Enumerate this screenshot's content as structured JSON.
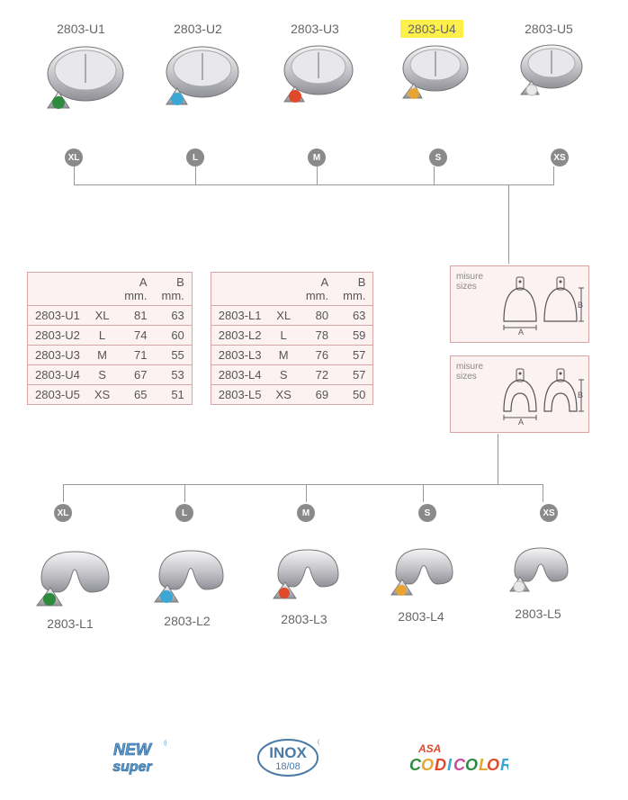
{
  "upper_products": [
    {
      "code": "2803-U1",
      "size": "XL",
      "dot_color": "#2e8b3d",
      "highlighted": false
    },
    {
      "code": "2803-U2",
      "size": "L",
      "dot_color": "#3ba7d4",
      "highlighted": false
    },
    {
      "code": "2803-U3",
      "size": "M",
      "dot_color": "#e04a2a",
      "highlighted": false
    },
    {
      "code": "2803-U4",
      "size": "S",
      "dot_color": "#e6a530",
      "highlighted": true
    },
    {
      "code": "2803-U5",
      "size": "XS",
      "dot_color": "#e8e8e8",
      "highlighted": false
    }
  ],
  "lower_products": [
    {
      "code": "2803-L1",
      "size": "XL",
      "dot_color": "#2e8b3d"
    },
    {
      "code": "2803-L2",
      "size": "L",
      "dot_color": "#3ba7d4"
    },
    {
      "code": "2803-L3",
      "size": "M",
      "dot_color": "#e04a2a"
    },
    {
      "code": "2803-L4",
      "size": "S",
      "dot_color": "#e6a530"
    },
    {
      "code": "2803-L5",
      "size": "XS",
      "dot_color": "#e8e8e8"
    }
  ],
  "table_headers": {
    "col_a": "A",
    "col_b": "B",
    "unit": "mm."
  },
  "table_upper": [
    {
      "code": "2803-U1",
      "size": "XL",
      "a": 81,
      "b": 63
    },
    {
      "code": "2803-U2",
      "size": "L",
      "a": 74,
      "b": 60
    },
    {
      "code": "2803-U3",
      "size": "M",
      "a": 71,
      "b": 55
    },
    {
      "code": "2803-U4",
      "size": "S",
      "a": 67,
      "b": 53
    },
    {
      "code": "2803-U5",
      "size": "XS",
      "a": 65,
      "b": 51
    }
  ],
  "table_lower": [
    {
      "code": "2803-L1",
      "size": "XL",
      "a": 80,
      "b": 63
    },
    {
      "code": "2803-L2",
      "size": "L",
      "a": 78,
      "b": 59
    },
    {
      "code": "2803-L3",
      "size": "M",
      "a": 76,
      "b": 57
    },
    {
      "code": "2803-L4",
      "size": "S",
      "a": 72,
      "b": 57
    },
    {
      "code": "2803-L5",
      "size": "XS",
      "a": 69,
      "b": 50
    }
  ],
  "diagram_label_line1": "misure",
  "diagram_label_line2": "sizes",
  "diagram_dim_a": "A",
  "diagram_dim_b": "B",
  "logos": {
    "new_super_top": "NEW",
    "new_super_bottom": "super",
    "inox_top": "INOX",
    "inox_bottom": "18/08",
    "codicolor_top": "ASA",
    "codicolor_bottom_1": "CO",
    "codicolor_bottom_2": "D",
    "codicolor_bottom_3": "I",
    "codicolor_bottom_4": "COLOR"
  },
  "colors": {
    "highlight_bg": "#fdf04a",
    "badge_bg": "#8a8a8a",
    "table_border": "#d7a5a5",
    "table_bg": "#fdf2f2",
    "text_grey": "#555555",
    "metal_light": "#f0f0f2",
    "metal_mid": "#c8c8cc",
    "metal_dark": "#888890"
  }
}
